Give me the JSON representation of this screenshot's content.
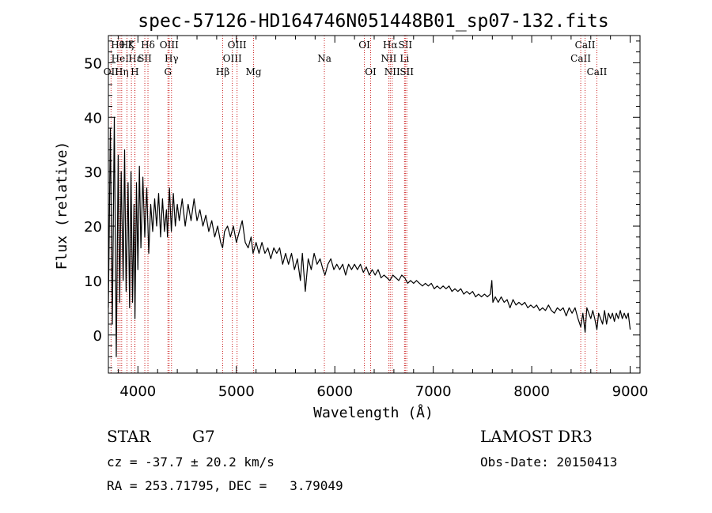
{
  "chart_data": {
    "type": "line",
    "title": "spec-57126-HD164746N051448B01_sp07-132.fits",
    "xlabel": "Wavelength (Å)",
    "ylabel": "Flux (relative)",
    "xlim": [
      3700,
      9100
    ],
    "ylim": [
      -7,
      55
    ],
    "xticks": [
      4000,
      5000,
      6000,
      7000,
      8000,
      9000
    ],
    "yticks": [
      0,
      10,
      20,
      30,
      40,
      50
    ],
    "grid": false,
    "series": [
      {
        "name": "spectrum",
        "points": [
          [
            3700,
            5
          ],
          [
            3720,
            38
          ],
          [
            3740,
            2
          ],
          [
            3760,
            40
          ],
          [
            3780,
            -4
          ],
          [
            3800,
            33
          ],
          [
            3815,
            6
          ],
          [
            3830,
            30
          ],
          [
            3850,
            10
          ],
          [
            3865,
            34
          ],
          [
            3880,
            8
          ],
          [
            3900,
            28
          ],
          [
            3915,
            5
          ],
          [
            3930,
            30
          ],
          [
            3945,
            6
          ],
          [
            3960,
            24
          ],
          [
            3970,
            3
          ],
          [
            3985,
            28
          ],
          [
            4000,
            12
          ],
          [
            4015,
            31
          ],
          [
            4030,
            16
          ],
          [
            4050,
            29
          ],
          [
            4070,
            18
          ],
          [
            4090,
            27
          ],
          [
            4110,
            15
          ],
          [
            4130,
            24
          ],
          [
            4150,
            19
          ],
          [
            4170,
            25
          ],
          [
            4190,
            20
          ],
          [
            4210,
            26
          ],
          [
            4230,
            18
          ],
          [
            4250,
            25
          ],
          [
            4270,
            19
          ],
          [
            4290,
            23
          ],
          [
            4300,
            18
          ],
          [
            4320,
            27
          ],
          [
            4340,
            19
          ],
          [
            4360,
            26
          ],
          [
            4380,
            20
          ],
          [
            4400,
            24
          ],
          [
            4420,
            21
          ],
          [
            4450,
            25
          ],
          [
            4480,
            20
          ],
          [
            4510,
            24
          ],
          [
            4540,
            21
          ],
          [
            4570,
            25
          ],
          [
            4600,
            21
          ],
          [
            4630,
            23
          ],
          [
            4660,
            20
          ],
          [
            4690,
            22
          ],
          [
            4720,
            19
          ],
          [
            4750,
            21
          ],
          [
            4780,
            18
          ],
          [
            4810,
            20
          ],
          [
            4840,
            17
          ],
          [
            4860,
            16
          ],
          [
            4880,
            19
          ],
          [
            4910,
            20
          ],
          [
            4940,
            18
          ],
          [
            4970,
            20
          ],
          [
            5000,
            17
          ],
          [
            5030,
            19
          ],
          [
            5060,
            21
          ],
          [
            5090,
            17
          ],
          [
            5120,
            16
          ],
          [
            5150,
            18
          ],
          [
            5170,
            15
          ],
          [
            5200,
            17
          ],
          [
            5230,
            15
          ],
          [
            5260,
            17
          ],
          [
            5290,
            15
          ],
          [
            5320,
            16
          ],
          [
            5350,
            14
          ],
          [
            5380,
            16
          ],
          [
            5410,
            15
          ],
          [
            5440,
            16
          ],
          [
            5470,
            13
          ],
          [
            5500,
            15
          ],
          [
            5530,
            13
          ],
          [
            5560,
            15
          ],
          [
            5590,
            12
          ],
          [
            5620,
            14
          ],
          [
            5650,
            10
          ],
          [
            5670,
            15
          ],
          [
            5700,
            8
          ],
          [
            5730,
            14
          ],
          [
            5760,
            12
          ],
          [
            5790,
            15
          ],
          [
            5820,
            13
          ],
          [
            5850,
            14
          ],
          [
            5880,
            12
          ],
          [
            5900,
            11
          ],
          [
            5930,
            13
          ],
          [
            5960,
            14
          ],
          [
            5990,
            12
          ],
          [
            6020,
            13
          ],
          [
            6050,
            12
          ],
          [
            6080,
            13
          ],
          [
            6110,
            11
          ],
          [
            6140,
            13
          ],
          [
            6170,
            12
          ],
          [
            6200,
            13
          ],
          [
            6230,
            12
          ],
          [
            6260,
            13
          ],
          [
            6290,
            11.5
          ],
          [
            6320,
            12.5
          ],
          [
            6350,
            11
          ],
          [
            6380,
            12
          ],
          [
            6410,
            11
          ],
          [
            6440,
            12
          ],
          [
            6470,
            10.5
          ],
          [
            6500,
            11
          ],
          [
            6530,
            10.5
          ],
          [
            6560,
            10
          ],
          [
            6590,
            11
          ],
          [
            6620,
            10.5
          ],
          [
            6650,
            10
          ],
          [
            6680,
            11
          ],
          [
            6710,
            10.5
          ],
          [
            6740,
            9.5
          ],
          [
            6770,
            10
          ],
          [
            6800,
            9.5
          ],
          [
            6830,
            10
          ],
          [
            6860,
            9.5
          ],
          [
            6890,
            9
          ],
          [
            6920,
            9.5
          ],
          [
            6950,
            9
          ],
          [
            6980,
            9.5
          ],
          [
            7010,
            8.5
          ],
          [
            7040,
            9
          ],
          [
            7070,
            8.5
          ],
          [
            7100,
            9
          ],
          [
            7130,
            8.5
          ],
          [
            7160,
            9
          ],
          [
            7190,
            8
          ],
          [
            7220,
            8.5
          ],
          [
            7250,
            8
          ],
          [
            7280,
            8.5
          ],
          [
            7310,
            7.5
          ],
          [
            7340,
            8
          ],
          [
            7370,
            7.5
          ],
          [
            7400,
            8
          ],
          [
            7430,
            7
          ],
          [
            7460,
            7.5
          ],
          [
            7490,
            7
          ],
          [
            7520,
            7.5
          ],
          [
            7550,
            7
          ],
          [
            7580,
            7.5
          ],
          [
            7595,
            10
          ],
          [
            7605,
            6
          ],
          [
            7630,
            7
          ],
          [
            7660,
            6
          ],
          [
            7690,
            7
          ],
          [
            7720,
            6
          ],
          [
            7750,
            6.5
          ],
          [
            7780,
            5
          ],
          [
            7810,
            6.5
          ],
          [
            7840,
            5.5
          ],
          [
            7870,
            6
          ],
          [
            7900,
            5.5
          ],
          [
            7930,
            6
          ],
          [
            7960,
            5
          ],
          [
            7990,
            5.5
          ],
          [
            8020,
            5
          ],
          [
            8050,
            5.5
          ],
          [
            8080,
            4.5
          ],
          [
            8110,
            5
          ],
          [
            8140,
            4.5
          ],
          [
            8170,
            5.5
          ],
          [
            8200,
            4.5
          ],
          [
            8230,
            4
          ],
          [
            8260,
            5
          ],
          [
            8290,
            4.5
          ],
          [
            8320,
            5
          ],
          [
            8350,
            3.5
          ],
          [
            8380,
            5
          ],
          [
            8410,
            4
          ],
          [
            8440,
            5
          ],
          [
            8470,
            3
          ],
          [
            8498,
            1.5
          ],
          [
            8520,
            4
          ],
          [
            8542,
            0.5
          ],
          [
            8560,
            5
          ],
          [
            8580,
            4
          ],
          [
            8600,
            3
          ],
          [
            8620,
            4.5
          ],
          [
            8640,
            3
          ],
          [
            8662,
            1
          ],
          [
            8680,
            4
          ],
          [
            8700,
            3
          ],
          [
            8720,
            2
          ],
          [
            8740,
            4.5
          ],
          [
            8760,
            2
          ],
          [
            8780,
            4
          ],
          [
            8800,
            3
          ],
          [
            8820,
            4
          ],
          [
            8840,
            2.5
          ],
          [
            8860,
            4
          ],
          [
            8880,
            3
          ],
          [
            8900,
            4.5
          ],
          [
            8920,
            3
          ],
          [
            8940,
            4
          ],
          [
            8960,
            3
          ],
          [
            8980,
            4
          ],
          [
            9000,
            1
          ]
        ]
      }
    ],
    "line_color": "#000000",
    "marker_color": "#cc2222",
    "line_markers": [
      {
        "label": "OII",
        "wavelength": 3727,
        "row": 3
      },
      {
        "label": "Hθ",
        "wavelength": 3797,
        "row": 1
      },
      {
        "label": "HeI",
        "wavelength": 3819,
        "row": 2
      },
      {
        "label": "Hη",
        "wavelength": 3835,
        "row": 3
      },
      {
        "label": "Hζ",
        "wavelength": 3889,
        "row": 1
      },
      {
        "label": "K",
        "wavelength": 3934,
        "row": 1
      },
      {
        "label": "Hε",
        "wavelength": 3970,
        "row": 2
      },
      {
        "label": "H",
        "wavelength": 3968,
        "row": 3
      },
      {
        "label": "SII",
        "wavelength": 4070,
        "row": 2
      },
      {
        "label": "Hδ",
        "wavelength": 4102,
        "row": 1
      },
      {
        "label": "OIII",
        "wavelength": 4317,
        "row": 1
      },
      {
        "label": "Hγ",
        "wavelength": 4341,
        "row": 2
      },
      {
        "label": "G",
        "wavelength": 4305,
        "row": 3
      },
      {
        "label": "Hβ",
        "wavelength": 4861,
        "row": 3
      },
      {
        "label": "OIII",
        "wavelength": 4959,
        "row": 2
      },
      {
        "label": "OIII",
        "wavelength": 5007,
        "row": 1
      },
      {
        "label": "Mg",
        "wavelength": 5175,
        "row": 3
      },
      {
        "label": "Na",
        "wavelength": 5894,
        "row": 2
      },
      {
        "label": "OI",
        "wavelength": 6300,
        "row": 1
      },
      {
        "label": "OI",
        "wavelength": 6364,
        "row": 3
      },
      {
        "label": "Hα",
        "wavelength": 6563,
        "row": 1
      },
      {
        "label": "NII",
        "wavelength": 6548,
        "row": 2
      },
      {
        "label": "NII",
        "wavelength": 6583,
        "row": 3
      },
      {
        "label": "SII",
        "wavelength": 6716,
        "row": 1
      },
      {
        "label": "Li",
        "wavelength": 6708,
        "row": 2
      },
      {
        "label": "SII",
        "wavelength": 6731,
        "row": 3
      },
      {
        "label": "CaII",
        "wavelength": 8498,
        "row": 2
      },
      {
        "label": "CaII",
        "wavelength": 8542,
        "row": 1
      },
      {
        "label": "CaII",
        "wavelength": 8662,
        "row": 3
      }
    ]
  },
  "info": {
    "object_class": "STAR",
    "subclass": "G7",
    "survey": "LAMOST DR3",
    "redshift": "cz = -37.7 ± 20.2 km/s",
    "obs_date": "Obs-Date: 20150413",
    "coords": "RA = 253.71795, DEC =   3.79049"
  }
}
